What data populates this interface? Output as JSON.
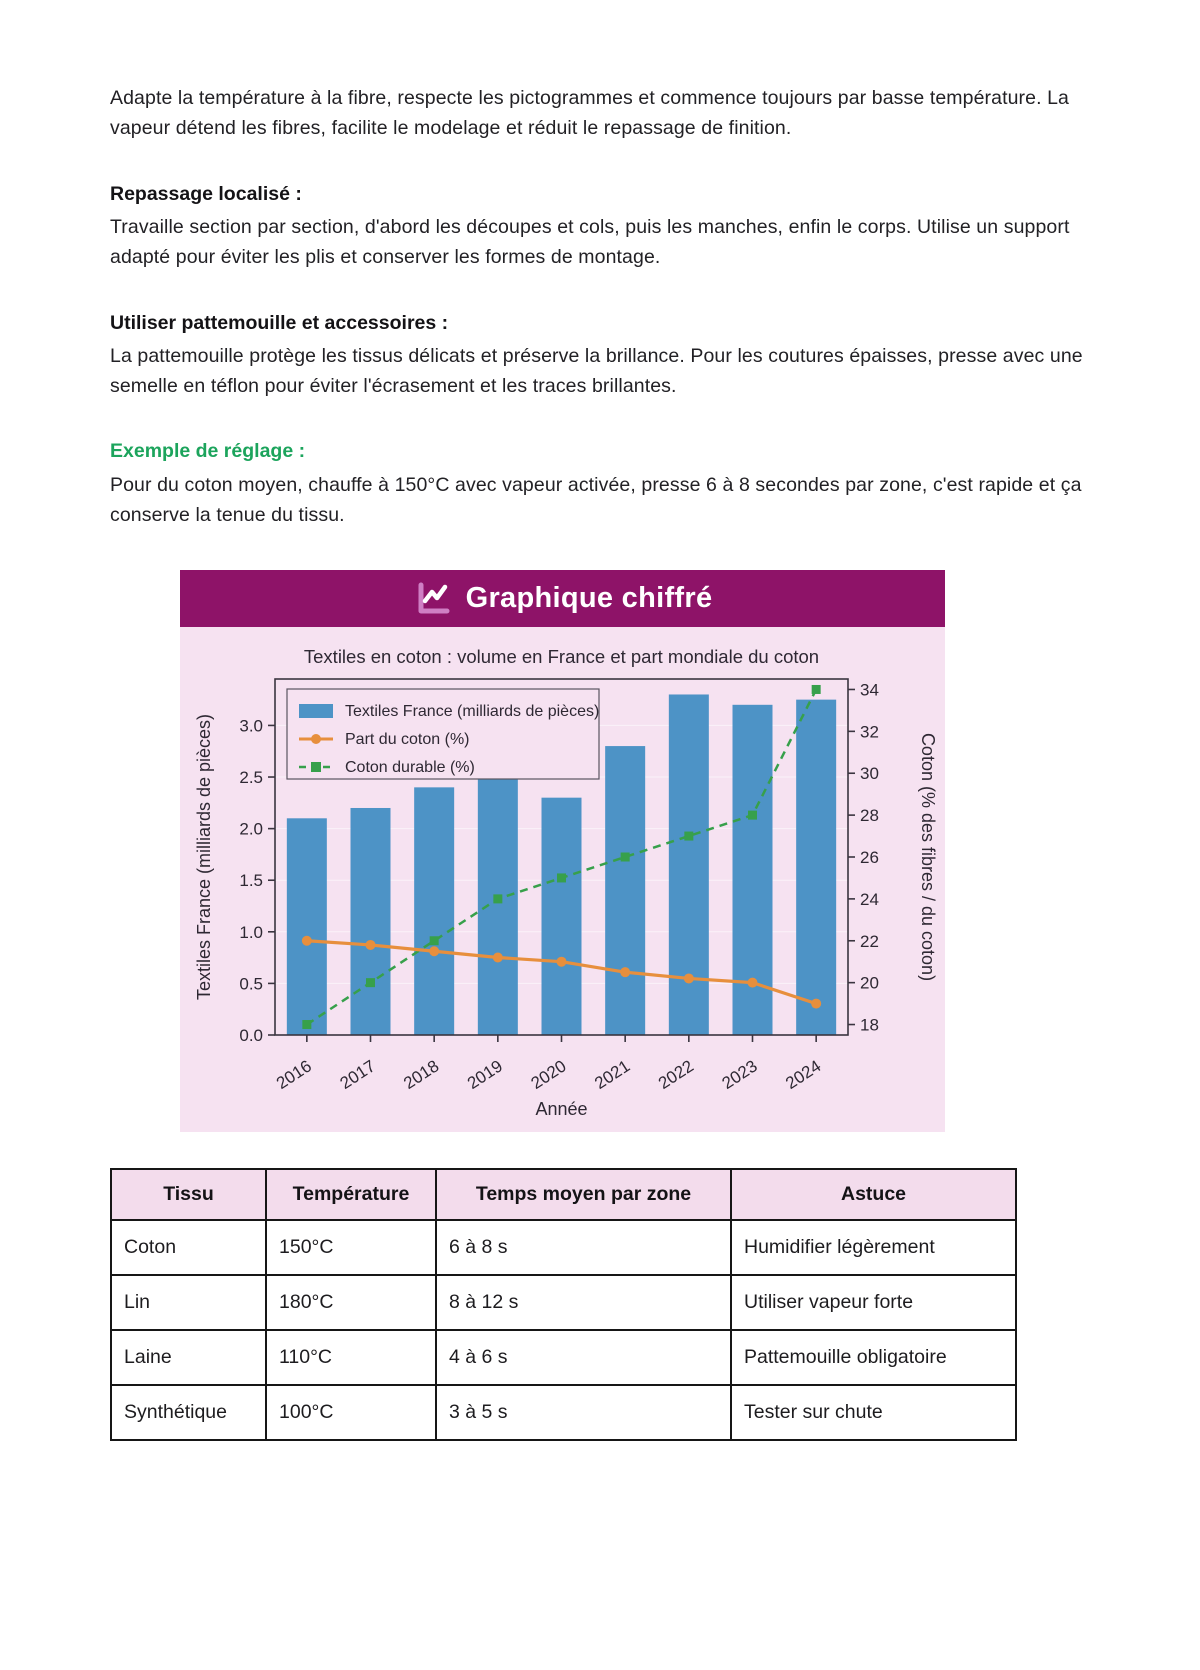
{
  "intro_paragraph": "Adapte la température à la fibre, respecte les pictogrammes et commence toujours par basse température. La vapeur détend les fibres, facilite le modelage et réduit le repassage de finition.",
  "sections": [
    {
      "heading": "Repassage localisé :",
      "body": "Travaille section par section, d'abord les découpes et cols, puis les manches, enfin le corps. Utilise un support adapté pour éviter les plis et conserver les formes de montage."
    },
    {
      "heading": "Utiliser pattemouille et accessoires :",
      "body": "La pattemouille protège les tissus délicats et préserve la brillance. Pour les coutures épaisses, presse avec une semelle en téflon pour éviter l'écrasement et les traces brillantes."
    },
    {
      "heading": "Exemple de réglage :",
      "body": "Pour du coton moyen, chauffe à 150°C avec vapeur activée, presse 6 à 8 secondes par zone, c'est rapide et ça conserve la tenue du tissu."
    }
  ],
  "chart_card": {
    "header_title": "Graphique chiffré",
    "header_bg": "#8e1368",
    "body_bg": "#f6e2f1",
    "icon": "chart-line-icon"
  },
  "chart_data": {
    "type": "bar",
    "title": "Textiles en coton : volume en France et part mondiale du coton",
    "categories": [
      "2016",
      "2017",
      "2018",
      "2019",
      "2020",
      "2021",
      "2022",
      "2023",
      "2024"
    ],
    "series": [
      {
        "name": "Textiles France (milliards de pièces)",
        "type": "bar",
        "axis": "left",
        "color": "#4d93c6",
        "values": [
          2.1,
          2.2,
          2.4,
          2.5,
          2.3,
          2.8,
          3.3,
          3.2,
          3.25
        ]
      },
      {
        "name": "Part du coton (%)",
        "type": "line",
        "axis": "right",
        "color": "#e78f3d",
        "marker": "circle",
        "values": [
          22.0,
          21.8,
          21.5,
          21.2,
          21.0,
          20.5,
          20.2,
          20.0,
          19.0
        ]
      },
      {
        "name": "Coton durable (%)",
        "type": "line-dashed",
        "axis": "right",
        "color": "#37a04b",
        "marker": "square",
        "values": [
          18,
          20,
          22,
          24,
          25,
          26,
          27,
          28,
          34
        ]
      }
    ],
    "xlabel": "Année",
    "ylabel_left": "Textiles France (milliards de pièces)",
    "ylabel_right": "Coton (% des fibres / du coton)",
    "yticks_left": [
      0.0,
      0.5,
      1.0,
      1.5,
      2.0,
      2.5,
      3.0
    ],
    "yticks_right": [
      18,
      20,
      22,
      24,
      26,
      28,
      30,
      32,
      34
    ],
    "ylim_left": [
      0,
      3.45
    ],
    "ylim_right": [
      17.5,
      34.5
    ],
    "grid": true,
    "legend_position": "upper left",
    "text_color": "#2e2833",
    "plot_bg": "#f6e2f1"
  },
  "table": {
    "header_bg": "#f3dcec",
    "headers": [
      "Tissu",
      "Température",
      "Temps moyen par zone",
      "Astuce"
    ],
    "rows": [
      [
        "Coton",
        "150°C",
        "6 à 8 s",
        "Humidifier légèrement"
      ],
      [
        "Lin",
        "180°C",
        "8 à 12 s",
        "Utiliser vapeur forte"
      ],
      [
        "Laine",
        "110°C",
        "4 à 6 s",
        "Pattemouille obligatoire"
      ],
      [
        "Synthétique",
        "100°C",
        "3 à 5 s",
        "Tester sur chute"
      ]
    ]
  }
}
